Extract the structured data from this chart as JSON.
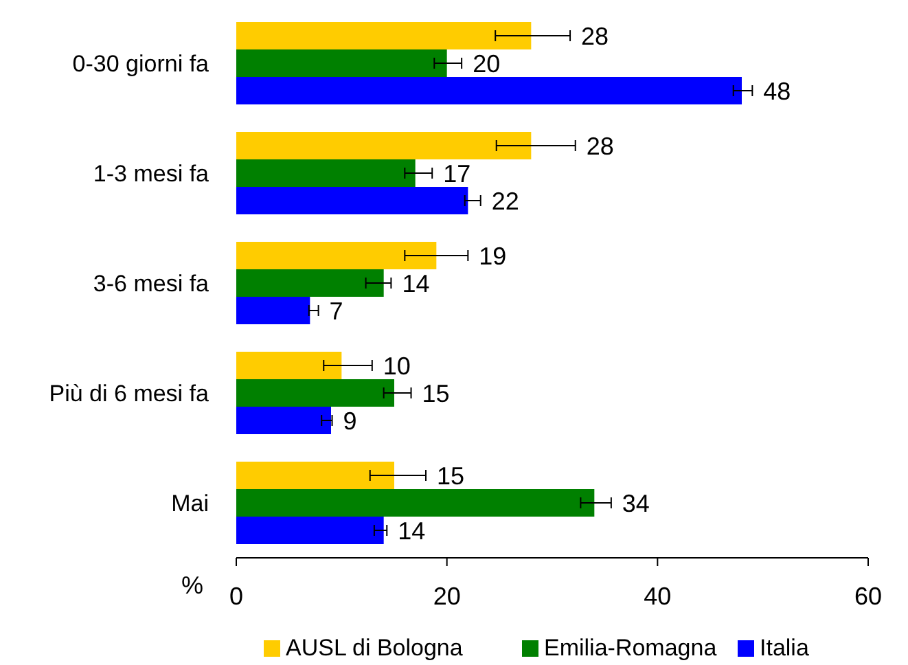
{
  "chart_data": {
    "type": "bar",
    "orientation": "horizontal",
    "xlabel": "%",
    "categories": [
      "0-30 giorni fa",
      "1-3 mesi fa",
      "3-6 mesi fa",
      "Più di 6 mesi fa",
      "Mai"
    ],
    "series": [
      {
        "name": "AUSL di Bologna",
        "color": "#ffcc00",
        "values": [
          28,
          28,
          19,
          10,
          15
        ],
        "errors": [
          [
            24.6,
            31.7
          ],
          [
            24.7,
            32.2
          ],
          [
            16.0,
            22.0
          ],
          [
            8.3,
            12.9
          ],
          [
            12.7,
            18.0
          ]
        ]
      },
      {
        "name": "Emilia-Romagna",
        "color": "#008000",
        "values": [
          20,
          17,
          14,
          15,
          34
        ],
        "errors": [
          [
            18.8,
            21.4
          ],
          [
            16.0,
            18.6
          ],
          [
            12.3,
            14.7
          ],
          [
            14.0,
            16.6
          ],
          [
            32.7,
            35.6
          ]
        ]
      },
      {
        "name": "Italia",
        "color": "#0000ff",
        "values": [
          48,
          22,
          7,
          9,
          14
        ],
        "errors": [
          [
            47.2,
            49.0
          ],
          [
            21.7,
            23.2
          ],
          [
            6.9,
            7.8
          ],
          [
            8.1,
            9.1
          ],
          [
            13.1,
            14.3
          ]
        ]
      }
    ],
    "xlim": [
      0,
      60
    ],
    "xticks": [
      0,
      20,
      40,
      60
    ],
    "data_labels": true,
    "legend": "bottom",
    "grid": false
  }
}
